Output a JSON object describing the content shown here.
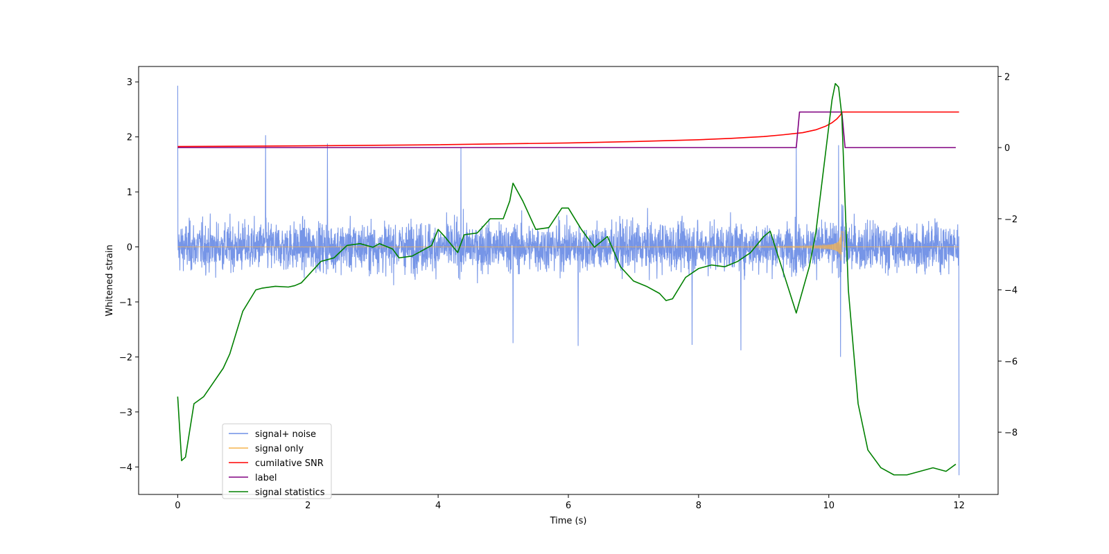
{
  "chart_data": {
    "type": "line",
    "xlabel": "Time (s)",
    "ylabel": "Whitened strain",
    "xlim": [
      -0.6,
      12.6
    ],
    "ylim": [
      -4.5,
      3.28
    ],
    "y2lim": [
      -9.75,
      2.28
    ],
    "xticks": [
      0,
      2,
      4,
      6,
      8,
      10,
      12
    ],
    "yticks": [
      -4,
      -3,
      -2,
      -1,
      0,
      1,
      2,
      3
    ],
    "y2ticks": [
      -8,
      -6,
      -4,
      -2,
      0,
      2
    ],
    "grid": false,
    "legend_position": "lower-left",
    "series": [
      {
        "name": "signal+ noise",
        "color": "#6F8FE6",
        "axis": "left",
        "kind": "noise",
        "x_range": [
          0,
          12
        ],
        "noise_amplitude": 0.5,
        "spikes": [
          {
            "x": 0.0,
            "y": 2.93
          },
          {
            "x": 1.35,
            "y": 2.03
          },
          {
            "x": 2.3,
            "y": 1.88
          },
          {
            "x": 4.35,
            "y": 1.8
          },
          {
            "x": 9.5,
            "y": 1.85
          },
          {
            "x": 10.15,
            "y": 1.85
          },
          {
            "x": 10.18,
            "y": -2.0
          },
          {
            "x": 6.15,
            "y": -1.8
          },
          {
            "x": 5.15,
            "y": -1.75
          },
          {
            "x": 8.65,
            "y": -1.88
          },
          {
            "x": 12.0,
            "y": -4.15
          },
          {
            "x": 7.9,
            "y": -1.78
          }
        ]
      },
      {
        "name": "signal only",
        "color": "#F5B34C",
        "axis": "left",
        "kind": "chirp",
        "x_range": [
          0,
          12
        ],
        "t_merge": 10.2,
        "peak_amplitude": 0.85
      },
      {
        "name": "cumilative SNR",
        "color": "#FF0000",
        "axis": "right",
        "kind": "line",
        "x": [
          0,
          2,
          4,
          6,
          7,
          8,
          8.5,
          9,
          9.3,
          9.6,
          9.8,
          9.95,
          10.05,
          10.12,
          10.18,
          10.2,
          12
        ],
        "y": [
          0.03,
          0.05,
          0.08,
          0.13,
          0.17,
          0.22,
          0.26,
          0.31,
          0.36,
          0.42,
          0.5,
          0.6,
          0.7,
          0.8,
          0.92,
          1.0,
          1.0
        ]
      },
      {
        "name": "label",
        "color": "#800080",
        "axis": "right",
        "kind": "line",
        "x": [
          0,
          9.5,
          9.55,
          10.2,
          10.25,
          11.95
        ],
        "y": [
          0,
          0,
          1,
          1,
          0,
          0
        ]
      },
      {
        "name": "signal statistics",
        "color": "#008000",
        "axis": "right",
        "kind": "line",
        "x": [
          0,
          0.06,
          0.12,
          0.25,
          0.4,
          0.55,
          0.7,
          0.8,
          0.9,
          1.0,
          1.1,
          1.2,
          1.3,
          1.5,
          1.7,
          1.8,
          1.9,
          2.0,
          2.1,
          2.2,
          2.4,
          2.6,
          2.8,
          3.0,
          3.1,
          3.3,
          3.4,
          3.6,
          3.8,
          3.9,
          4.0,
          4.1,
          4.3,
          4.4,
          4.6,
          4.8,
          5.0,
          5.1,
          5.15,
          5.3,
          5.5,
          5.7,
          5.9,
          6.0,
          6.2,
          6.4,
          6.6,
          6.8,
          7.0,
          7.2,
          7.4,
          7.5,
          7.6,
          7.8,
          8.0,
          8.2,
          8.4,
          8.6,
          8.8,
          9.0,
          9.1,
          9.3,
          9.5,
          9.6,
          9.7,
          9.8,
          9.9,
          10.0,
          10.05,
          10.1,
          10.15,
          10.2,
          10.3,
          10.45,
          10.6,
          10.8,
          11.0,
          11.2,
          11.4,
          11.6,
          11.8,
          11.95
        ],
        "y": [
          -7.0,
          -8.8,
          -8.7,
          -7.2,
          -7.0,
          -6.6,
          -6.2,
          -5.8,
          -5.2,
          -4.6,
          -4.3,
          -4.0,
          -3.95,
          -3.9,
          -3.92,
          -3.88,
          -3.8,
          -3.6,
          -3.4,
          -3.2,
          -3.1,
          -2.75,
          -2.7,
          -2.8,
          -2.7,
          -2.85,
          -3.1,
          -3.05,
          -2.85,
          -2.75,
          -2.3,
          -2.5,
          -2.95,
          -2.45,
          -2.4,
          -2.0,
          -2.0,
          -1.5,
          -1.0,
          -1.5,
          -2.3,
          -2.25,
          -1.7,
          -1.7,
          -2.3,
          -2.8,
          -2.5,
          -3.35,
          -3.75,
          -3.9,
          -4.1,
          -4.3,
          -4.25,
          -3.65,
          -3.4,
          -3.3,
          -3.35,
          -3.2,
          -2.95,
          -2.5,
          -2.35,
          -3.5,
          -4.65,
          -4.0,
          -3.35,
          -2.4,
          -0.9,
          0.6,
          1.35,
          1.8,
          1.7,
          0.9,
          -4.0,
          -7.2,
          -8.5,
          -9.0,
          -9.2,
          -9.2,
          -9.1,
          -9.0,
          -9.1,
          -8.9
        ]
      }
    ]
  }
}
